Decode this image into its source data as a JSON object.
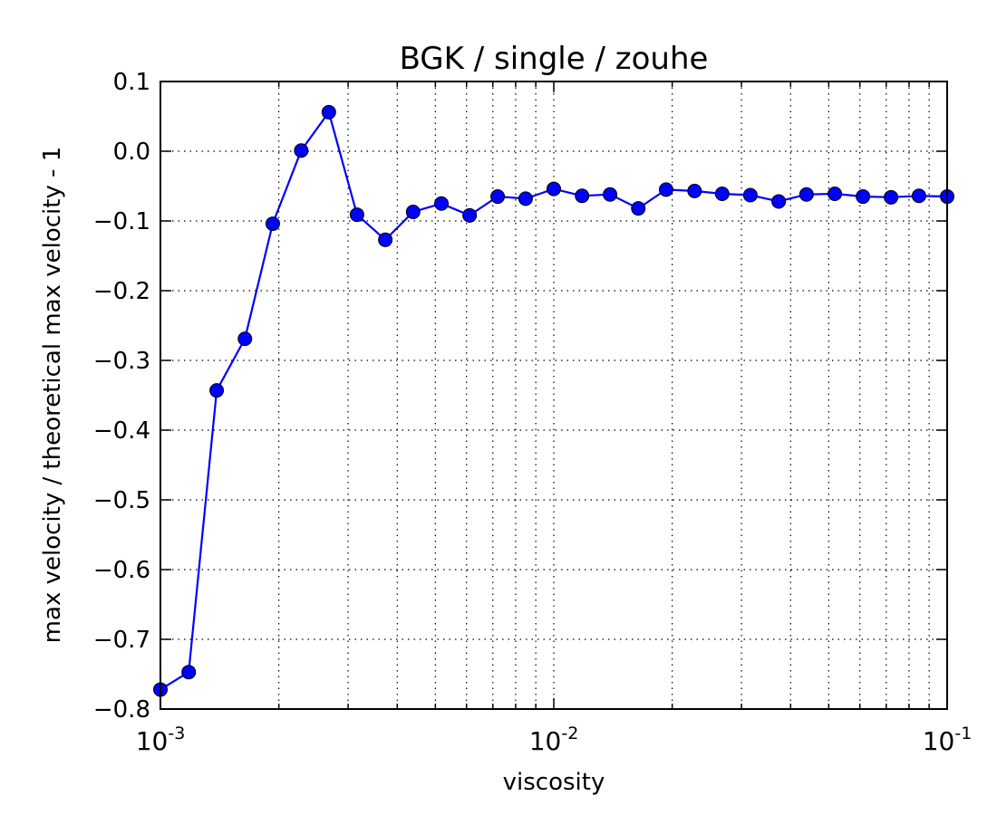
{
  "chart_data": {
    "type": "line",
    "title": "BGK / single / zouhe",
    "xlabel": "viscosity",
    "ylabel": "max velocity / theoretical max velocity - 1",
    "x_scale": "log",
    "xlim": [
      0.001,
      0.1
    ],
    "ylim": [
      -0.8,
      0.1
    ],
    "grid": true,
    "grid_style": "dotted",
    "line_color": "#0000ff",
    "marker": "circle",
    "x_ticks": [
      {
        "value": 0.001,
        "base": "10",
        "exp": "-3"
      },
      {
        "value": 0.01,
        "base": "10",
        "exp": "-2"
      },
      {
        "value": 0.1,
        "base": "10",
        "exp": "-1"
      }
    ],
    "y_ticks": [
      {
        "value": 0.1,
        "label": "0.1"
      },
      {
        "value": 0.0,
        "label": "0.0"
      },
      {
        "value": -0.1,
        "label": "−0.1"
      },
      {
        "value": -0.2,
        "label": "−0.2"
      },
      {
        "value": -0.3,
        "label": "−0.3"
      },
      {
        "value": -0.4,
        "label": "−0.4"
      },
      {
        "value": -0.5,
        "label": "−0.5"
      },
      {
        "value": -0.6,
        "label": "−0.6"
      },
      {
        "value": -0.7,
        "label": "−0.7"
      },
      {
        "value": -0.8,
        "label": "−0.8"
      }
    ],
    "series": [
      {
        "x": [
          0.001,
          0.00118,
          0.00139,
          0.00164,
          0.00193,
          0.00228,
          0.00268,
          0.00316,
          0.00373,
          0.00439,
          0.00518,
          0.00611,
          0.0072,
          0.00848,
          0.01,
          0.0118,
          0.0139,
          0.0164,
          0.0193,
          0.0228,
          0.0268,
          0.0316,
          0.0373,
          0.0439,
          0.0518,
          0.0611,
          0.072,
          0.0848,
          0.1
        ],
        "y": [
          -0.772,
          -0.747,
          -0.343,
          -0.269,
          -0.104,
          0.001,
          0.056,
          -0.091,
          -0.127,
          -0.087,
          -0.075,
          -0.092,
          -0.065,
          -0.068,
          -0.054,
          -0.064,
          -0.062,
          -0.082,
          -0.055,
          -0.057,
          -0.061,
          -0.063,
          -0.072,
          -0.062,
          -0.061,
          -0.065,
          -0.066,
          -0.064,
          -0.065
        ]
      }
    ]
  }
}
